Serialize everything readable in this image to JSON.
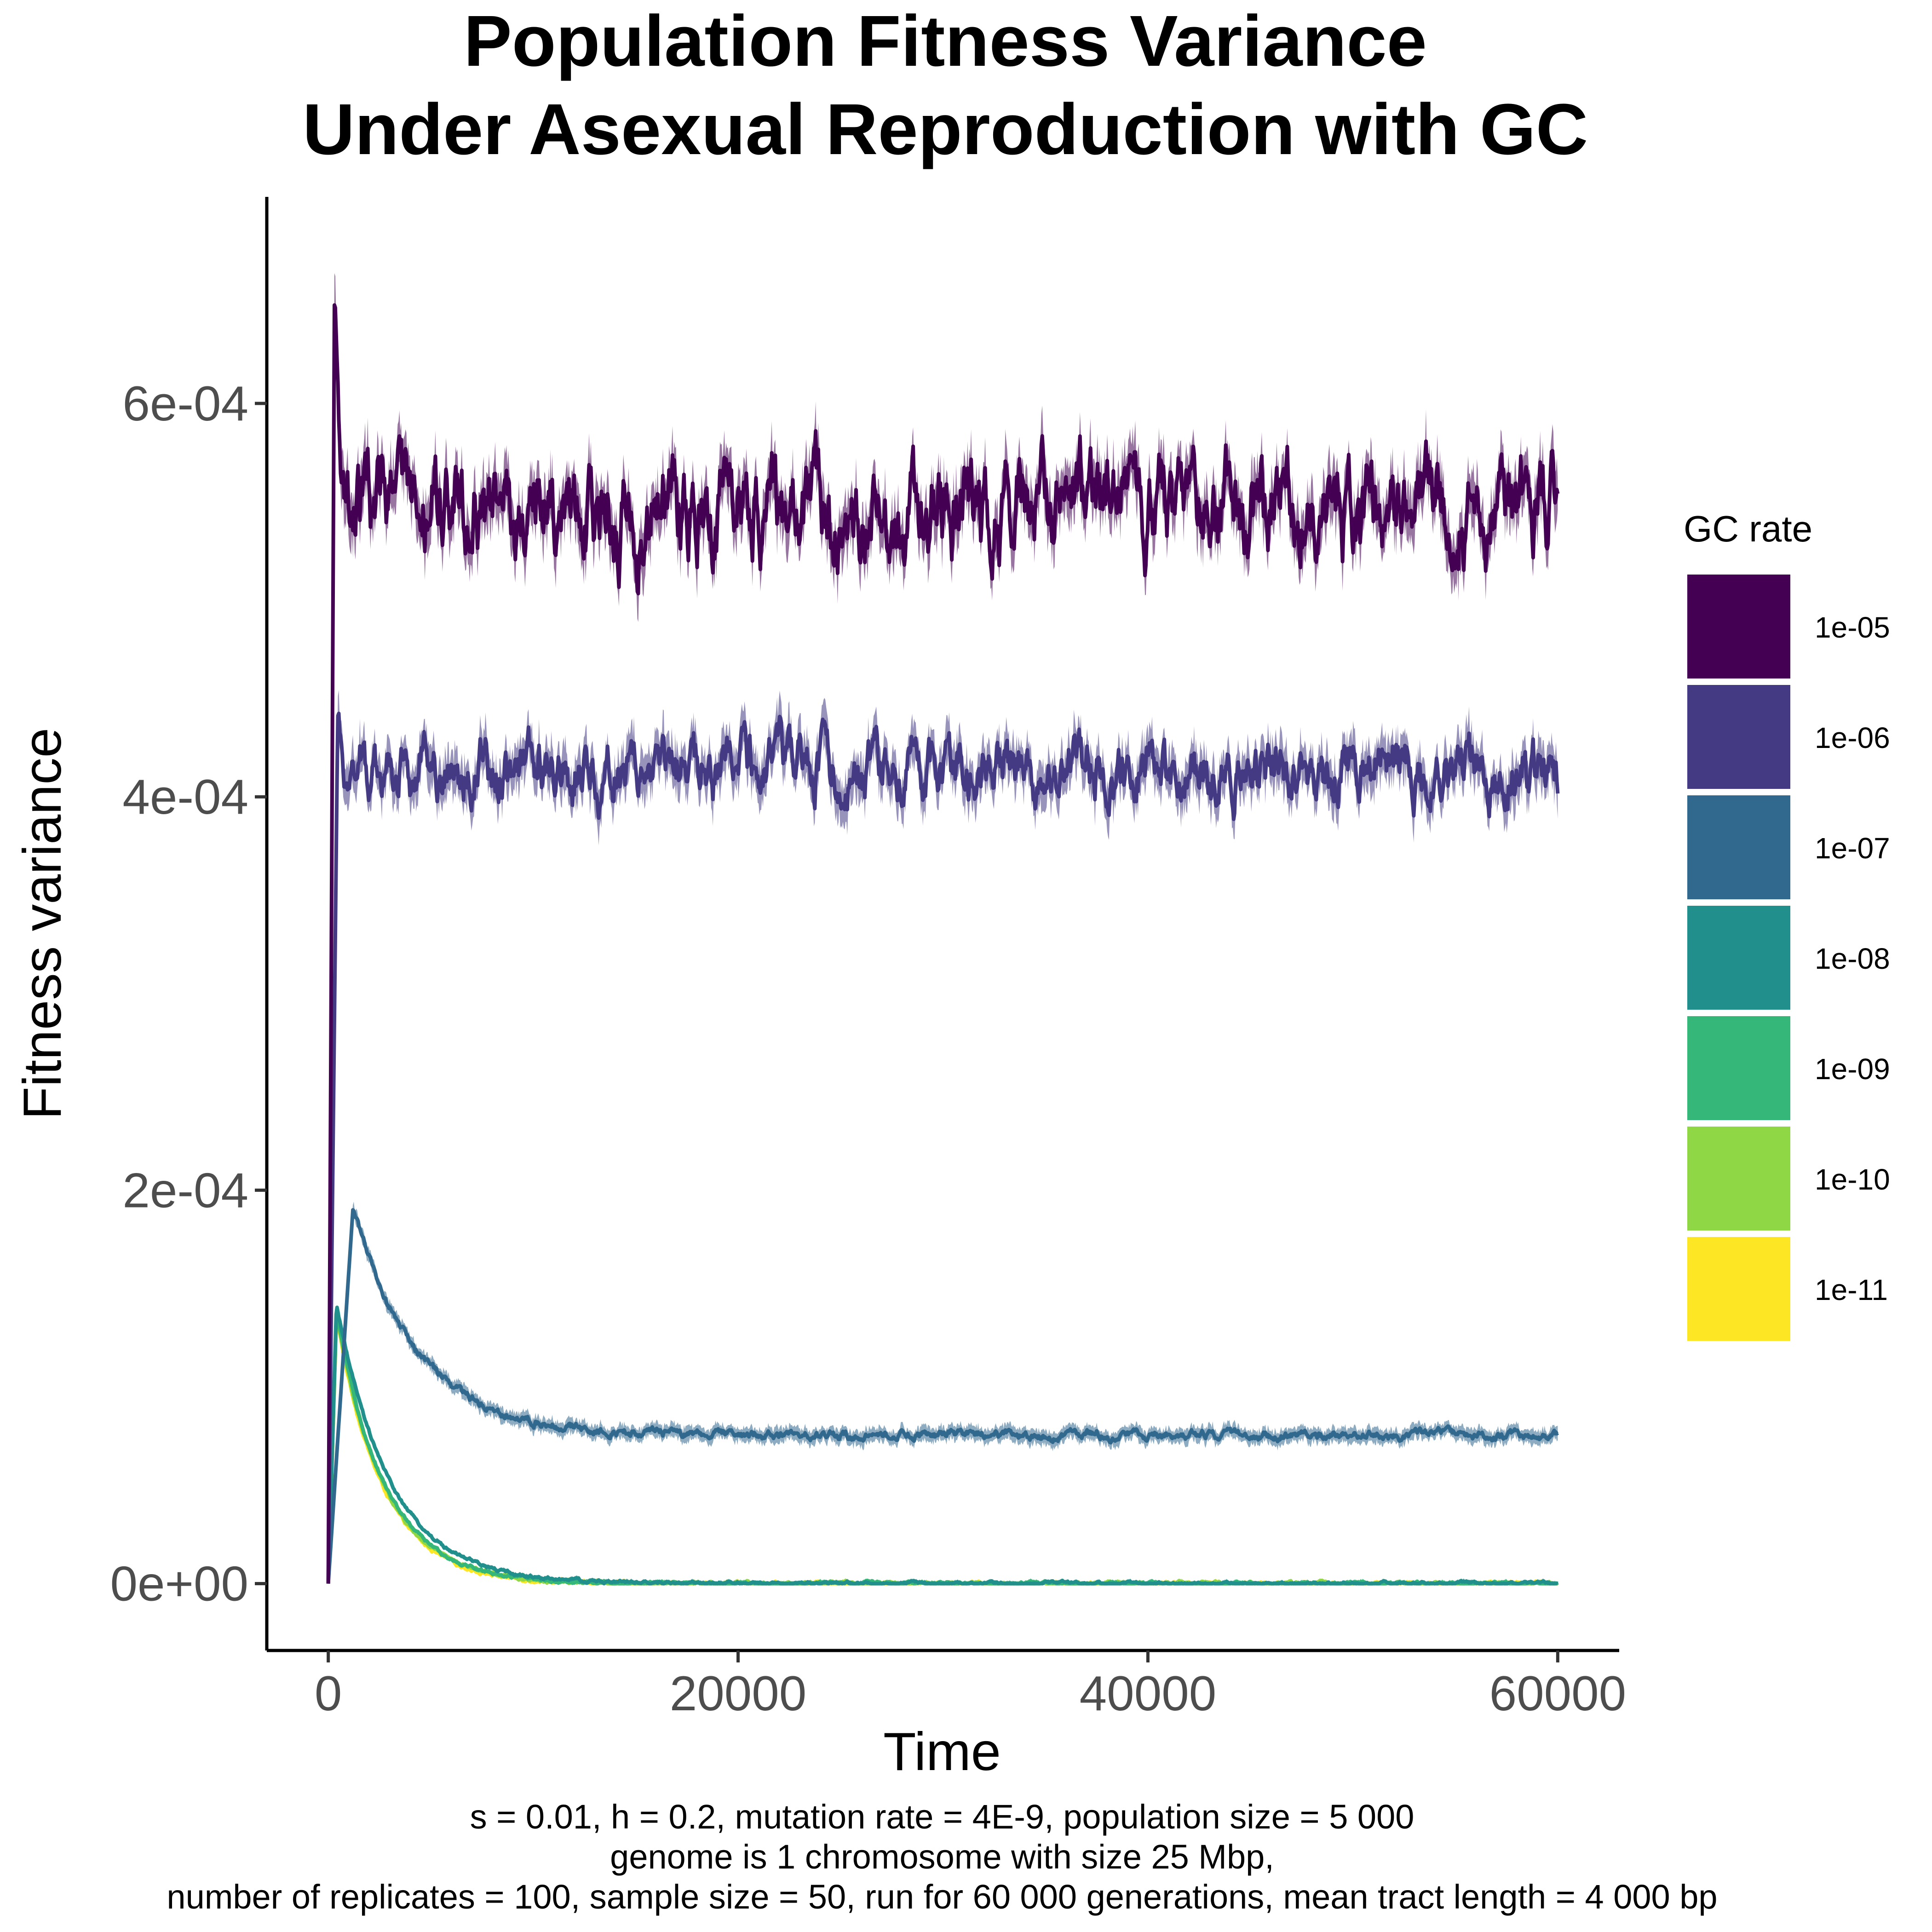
{
  "chart_data": {
    "type": "line",
    "title_lines": [
      "Population Fitness Variance",
      "Under Asexual Reproduction with GC"
    ],
    "xlabel": "Time",
    "ylabel": "Fitness variance",
    "xlim": [
      -3000,
      63000
    ],
    "ylim": [
      -3.4e-05,
      0.000705
    ],
    "x_ticks": [
      0,
      20000,
      40000,
      60000
    ],
    "x_tick_labels": [
      "0",
      "20000",
      "40000",
      "60000"
    ],
    "y_ticks": [
      0,
      0.0002,
      0.0004,
      0.0006
    ],
    "y_tick_labels": [
      "0e+00",
      "2e-04",
      "4e-04",
      "6e-04"
    ],
    "grid": false,
    "legend": {
      "title": "GC rate",
      "position": "right"
    },
    "series": [
      {
        "name": "1e-05",
        "color": "#440154",
        "peak": 0.00065,
        "peak_time": 300,
        "plateau": 0.000545,
        "noise": 1.6e-05,
        "band": 1.2e-05
      },
      {
        "name": "1e-06",
        "color": "#443A83",
        "peak": 0.00043,
        "peak_time": 450,
        "plateau": 0.000414,
        "noise": 1e-05,
        "band": 1e-05
      },
      {
        "name": "1e-07",
        "color": "#31688E",
        "peak": 0.00019,
        "peak_time": 1200,
        "plateau": 7.55e-05,
        "decay_tau": 3200,
        "noise": 1.5e-06,
        "band": 3.5e-06
      },
      {
        "name": "1e-08",
        "color": "#21908C",
        "peak": 0.000142,
        "peak_time": 400,
        "plateau": 0,
        "decay_tau": 2600,
        "noise": 6e-07,
        "band": 1e-06
      },
      {
        "name": "1e-09",
        "color": "#35B779",
        "peak": 0.000138,
        "peak_time": 400,
        "plateau": 0,
        "decay_tau": 2350,
        "noise": 6e-07,
        "band": 1e-06
      },
      {
        "name": "1e-10",
        "color": "#8FD744",
        "peak": 0.000137,
        "peak_time": 400,
        "plateau": 0,
        "decay_tau": 2300,
        "noise": 6e-07,
        "band": 1e-06
      },
      {
        "name": "1e-11",
        "color": "#FDE725",
        "peak": 0.000136,
        "peak_time": 400,
        "plateau": 0,
        "decay_tau": 2250,
        "noise": 6e-07,
        "band": 1e-06
      }
    ],
    "x_end": 60000,
    "caption_lines": [
      "s = 0.01, h = 0.2, mutation rate = 4E-9, population size = 5 000",
      "genome is 1 chromosome with size 25 Mbp,",
      "number of replicates = 100, sample size = 50, run for 60 000 generations, mean tract length = 4 000 bp"
    ]
  }
}
